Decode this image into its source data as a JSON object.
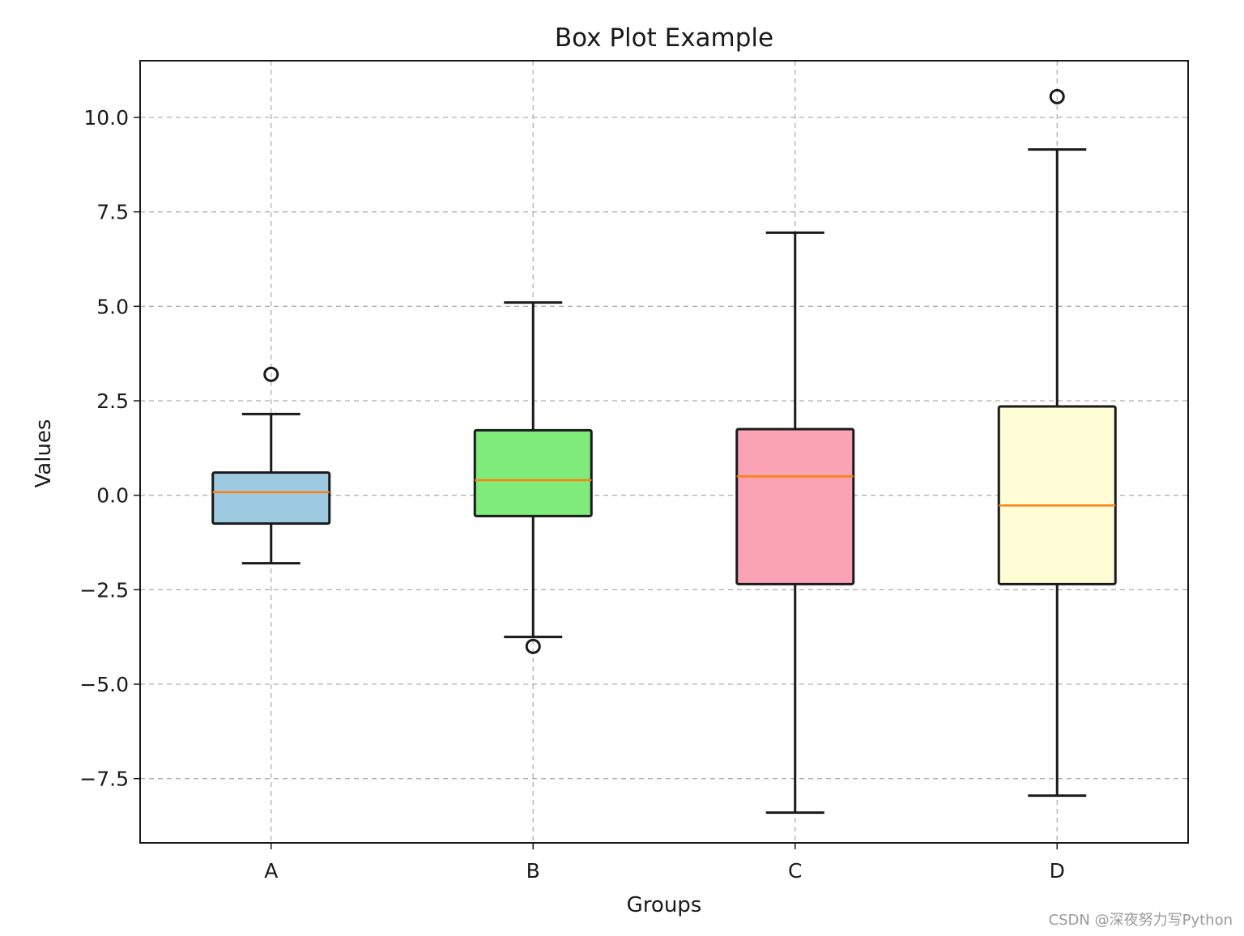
{
  "chart_data": {
    "type": "box",
    "title": "Box Plot Example",
    "xlabel": "Groups",
    "ylabel": "Values",
    "categories": [
      "A",
      "B",
      "C",
      "D"
    ],
    "ylim": [
      -9.2,
      11.5
    ],
    "yticks": [
      -7.5,
      -5.0,
      -2.5,
      0.0,
      2.5,
      5.0,
      7.5,
      10.0
    ],
    "ytick_labels": [
      "−7.5",
      "−5.0",
      "−2.5",
      "0.0",
      "2.5",
      "5.0",
      "7.5",
      "10.0"
    ],
    "grid": true,
    "boxes": [
      {
        "label": "A",
        "whislo": -1.8,
        "q1": -0.75,
        "med": 0.08,
        "q3": 0.6,
        "whishi": 2.15,
        "fliers": [
          3.2
        ],
        "color": "#9ecae1"
      },
      {
        "label": "B",
        "whislo": -3.75,
        "q1": -0.55,
        "med": 0.4,
        "q3": 1.72,
        "whishi": 5.1,
        "fliers": [
          -4.0
        ],
        "color": "#7feb7a"
      },
      {
        "label": "C",
        "whislo": -8.4,
        "q1": -2.35,
        "med": 0.5,
        "q3": 1.75,
        "whishi": 6.95,
        "fliers": [],
        "color": "#f9a3b4"
      },
      {
        "label": "D",
        "whislo": -7.95,
        "q1": -2.35,
        "med": -0.27,
        "q3": 2.35,
        "whishi": 9.15,
        "fliers": [
          10.55
        ],
        "color": "#fffdd6"
      }
    ],
    "median_color": "#ff7f0e"
  },
  "watermark": "CSDN @深夜努力写Python"
}
